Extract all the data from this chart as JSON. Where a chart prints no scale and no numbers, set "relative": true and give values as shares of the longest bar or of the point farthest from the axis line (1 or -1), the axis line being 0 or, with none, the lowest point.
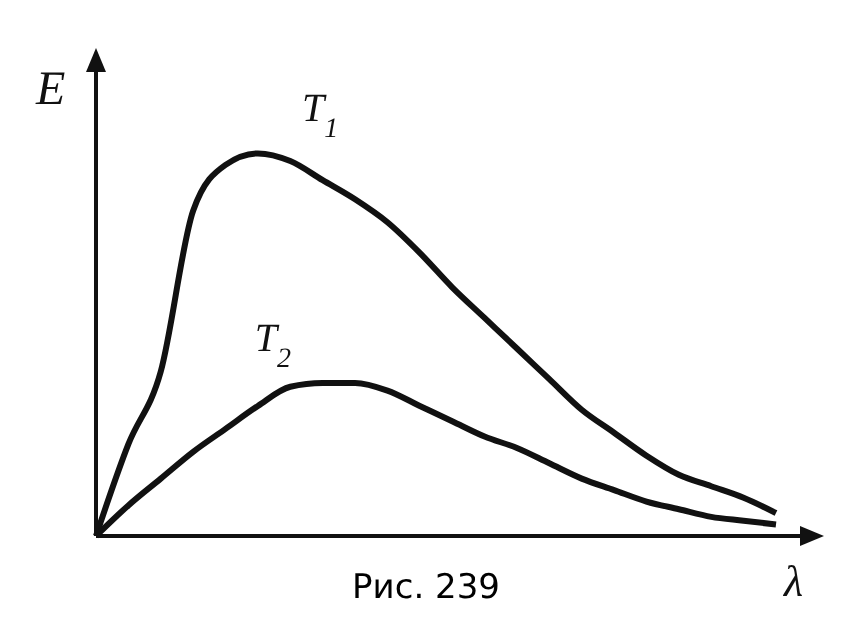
{
  "chart_data": {
    "type": "line",
    "relative": true,
    "xlabel": "λ",
    "ylabel": "E",
    "annotations": [
      "Рис. 239"
    ],
    "categories": [
      null,
      null,
      null,
      null,
      null,
      null,
      null,
      null,
      null,
      null,
      null,
      null,
      null,
      null,
      null,
      null,
      null,
      null,
      null,
      null,
      null,
      null
    ],
    "marker": "none",
    "line_style": "solid",
    "grid": false,
    "legend": false,
    "series": [
      {
        "name": "T$_{1}$",
        "color": "#111111",
        "values": [
          0,
          0.24,
          0.43,
          0.85,
          0.97,
          1,
          0.98,
          0.93,
          0.88,
          0.82,
          0.74,
          0.65,
          0.57,
          0.49,
          0.41,
          0.33,
          0.27,
          0.21,
          0.16,
          0.13,
          0.1,
          0.06
        ]
      },
      {
        "name": "T$_{2}$",
        "color": "#111111",
        "values": [
          0,
          0.08,
          0.15,
          0.22,
          0.28,
          0.34,
          0.39,
          0.4,
          0.4,
          0.38,
          0.34,
          0.3,
          0.26,
          0.23,
          0.19,
          0.15,
          0.12,
          0.09,
          0.07,
          0.05,
          0.04,
          0.03
        ]
      }
    ]
  }
}
